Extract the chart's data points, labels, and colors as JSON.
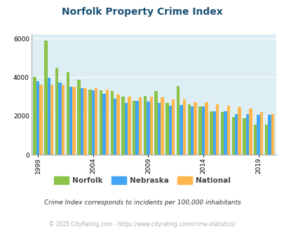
{
  "title": "Norfolk Property Crime Index",
  "years": [
    1999,
    2000,
    2001,
    2002,
    2003,
    2004,
    2005,
    2006,
    2007,
    2008,
    2009,
    2010,
    2011,
    2012,
    2013,
    2014,
    2015,
    2016,
    2017,
    2018,
    2019,
    2020
  ],
  "norfolk": [
    4000,
    5900,
    4500,
    4280,
    3880,
    3350,
    3330,
    3300,
    3020,
    2800,
    3050,
    3300,
    2680,
    3540,
    2620,
    2480,
    2260,
    2220,
    1970,
    1870,
    1560,
    1560
  ],
  "nebraska": [
    3800,
    3960,
    3740,
    3500,
    3430,
    3310,
    3130,
    2900,
    2690,
    2800,
    2750,
    2680,
    2520,
    2580,
    2500,
    2500,
    2260,
    2250,
    2100,
    2090,
    2080,
    2080
  ],
  "national": [
    3620,
    3600,
    3620,
    3500,
    3420,
    3430,
    3370,
    3100,
    3010,
    2950,
    3020,
    2970,
    2860,
    2870,
    2720,
    2700,
    2590,
    2540,
    2450,
    2390,
    2220,
    2100
  ],
  "norfolk_color": "#8bc34a",
  "nebraska_color": "#42a5f5",
  "national_color": "#ffb74d",
  "bg_color": "#ddeef4",
  "ylim": [
    0,
    6200
  ],
  "yticks": [
    0,
    2000,
    4000,
    6000
  ],
  "xlabel_ticks": [
    1999,
    2004,
    2009,
    2014,
    2019
  ],
  "note": "Crime Index corresponds to incidents per 100,000 inhabitants",
  "footer": "© 2025 CityRating.com - https://www.cityrating.com/crime-statistics/",
  "bar_width": 0.28
}
